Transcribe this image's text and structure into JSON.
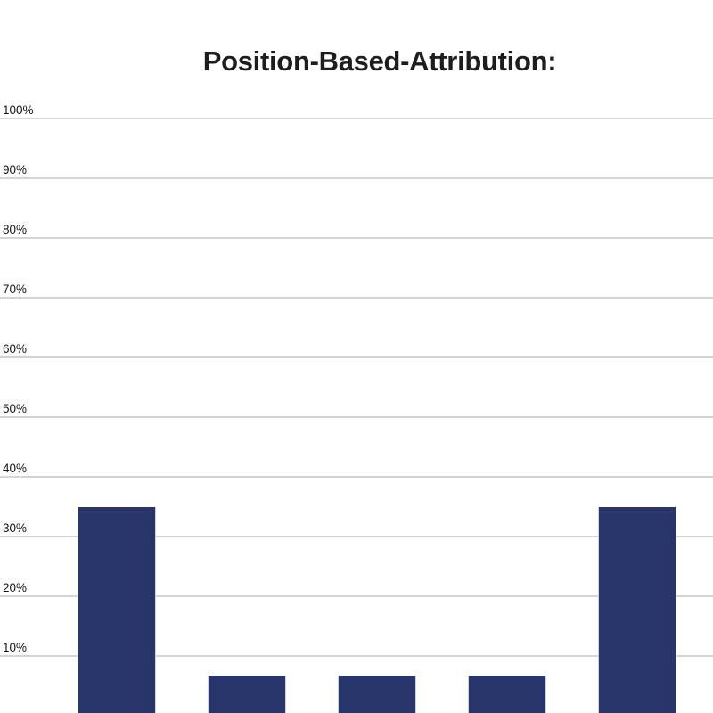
{
  "title": "Position-Based-Attribution:",
  "colors": {
    "background": "#ffffff",
    "bar": "#27356a",
    "gridline": "#d4d4d4",
    "title_text": "#1d1d21",
    "tick_text": "#141414"
  },
  "chart_data": {
    "type": "bar",
    "title": "Position-Based-Attribution:",
    "values": [
      35,
      6.7,
      6.7,
      6.7,
      35
    ],
    "unit": "%",
    "xlabel": "",
    "ylabel": "",
    "ylim": [
      0,
      100
    ],
    "yticks": [
      10,
      20,
      30,
      40,
      50,
      60,
      70,
      80,
      90,
      100
    ],
    "ytick_labels": [
      "10%",
      "20%",
      "30%",
      "40%",
      "50%",
      "60%",
      "70%",
      "80%",
      "90%",
      "100%"
    ],
    "grid": true,
    "legend": false,
    "x_axis_labels_visible": false,
    "baseline_cropped_at_bottom": true,
    "bar_color": "#27356a"
  }
}
